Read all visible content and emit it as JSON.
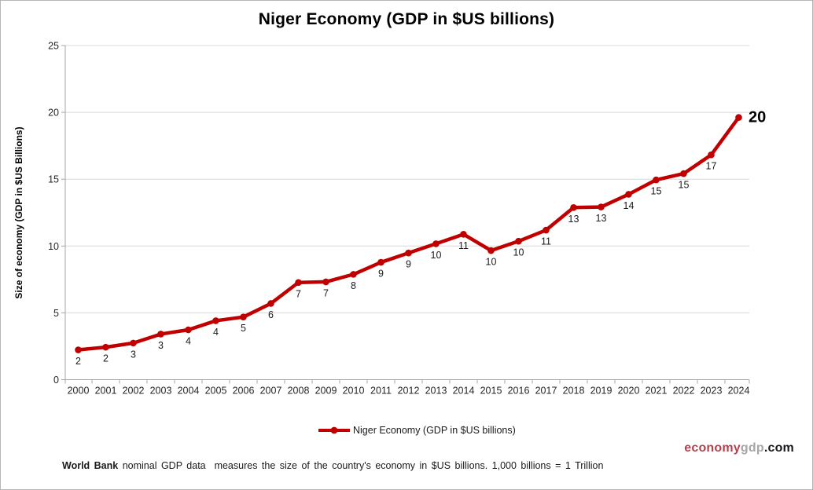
{
  "header": {
    "title": "Niger Economy (GDP in $US billions)"
  },
  "legend": {
    "label": "Niger Economy (GDP in $US billions)"
  },
  "watermark": {
    "part1": "economy",
    "part2": "gdp",
    "part3": ".com"
  },
  "footnote": {
    "bold": "World Bank",
    "text": " nominal GDP data  measures the size of the country's economy in $US billions. 1,000 billions = 1 Trillion"
  },
  "colors": {
    "series": "#C00000",
    "gridline": "#D8D8D8",
    "axis": "#A6A6A6",
    "tick_label": "#262626",
    "data_label": "#1a1a1a",
    "watermark_economy": "#B2434E",
    "watermark_gdp": "#a6a6a6",
    "watermark_com": "#15151a"
  },
  "chart_data": {
    "type": "line",
    "title": "Niger Economy (GDP in $US billions)",
    "xlabel": "",
    "ylabel": "Size of economy (GDP in $US Billions)",
    "ylim": [
      0,
      25
    ],
    "yticks": [
      0,
      5,
      10,
      15,
      20,
      25
    ],
    "grid": "horizontal",
    "legend_position": "bottom",
    "categories": [
      "2000",
      "2001",
      "2002",
      "2003",
      "2004",
      "2005",
      "2006",
      "2007",
      "2008",
      "2009",
      "2010",
      "2011",
      "2012",
      "2013",
      "2014",
      "2015",
      "2016",
      "2017",
      "2018",
      "2019",
      "2020",
      "2021",
      "2022",
      "2023",
      "2024"
    ],
    "series": [
      {
        "name": "Niger Economy (GDP in $US billions)",
        "color": "#C00000",
        "values": [
          2.23,
          2.43,
          2.74,
          3.41,
          3.73,
          4.41,
          4.69,
          5.7,
          7.27,
          7.32,
          7.88,
          8.78,
          9.48,
          10.17,
          10.88,
          9.66,
          10.36,
          11.19,
          12.88,
          12.92,
          13.87,
          14.95,
          15.42,
          16.82,
          19.62
        ],
        "point_labels": [
          "2",
          "2",
          "3",
          "3",
          "4",
          "4",
          "5",
          "6",
          "7",
          "7",
          "8",
          "9",
          "9",
          "10",
          "11",
          "10",
          "10",
          "11",
          "13",
          "13",
          "14",
          "15",
          "15",
          "17",
          "20"
        ]
      }
    ]
  }
}
